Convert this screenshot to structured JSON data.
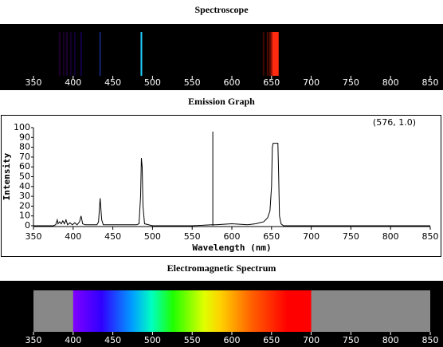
{
  "chart_data": [
    {
      "type": "spectroscope",
      "title": "Spectroscope",
      "xlim": [
        350,
        850
      ],
      "xticks": [
        350,
        400,
        450,
        500,
        550,
        600,
        650,
        700,
        750,
        800,
        850
      ],
      "lines": [
        383,
        388,
        392,
        397,
        402,
        410,
        434,
        486,
        640,
        645,
        648,
        650,
        652,
        653,
        654,
        655,
        656,
        657,
        658
      ],
      "values": [
        0.25,
        0.2,
        0.25,
        0.2,
        0.2,
        0.3,
        0.45,
        1,
        0.25,
        0.3,
        0.35,
        0.6,
        1,
        1,
        1,
        1,
        1,
        1,
        1
      ],
      "colors": [
        "#7a00c0",
        "#7a00c0",
        "#7000d0",
        "#6000e0",
        "#5000ff",
        "#4000ff",
        "#3050ff",
        "#20d0ff",
        "#ff2000",
        "#ff2000",
        "#ff2000",
        "#ff2000",
        "#ff2a10",
        "#ff2a10",
        "#ff2a10",
        "#ff2a10",
        "#ff2a10",
        "#ff2a10",
        "#ff2a10"
      ]
    },
    {
      "type": "line",
      "title": "Emission Graph",
      "xlabel": "Wavelength (nm)",
      "ylabel": "Intensity",
      "annotation": "(576, 1.0)",
      "cursor_x": 576,
      "color": "#000000",
      "xlim": [
        350,
        850
      ],
      "ylim": [
        0,
        100
      ],
      "xticks": [
        350,
        400,
        450,
        500,
        550,
        600,
        650,
        700,
        750,
        800,
        850
      ],
      "yticks": [
        0,
        10,
        20,
        30,
        40,
        50,
        60,
        70,
        80,
        90,
        100
      ],
      "x": [
        350,
        375,
        378,
        380,
        381,
        383,
        385,
        387,
        389,
        391,
        393,
        396,
        399,
        402,
        405,
        408,
        410,
        412,
        415,
        420,
        430,
        432,
        434,
        436,
        438,
        450,
        470,
        480,
        483,
        485,
        486,
        487,
        488,
        490,
        495,
        500,
        550,
        575,
        580,
        600,
        620,
        630,
        640,
        645,
        648,
        650,
        651,
        652,
        658,
        659,
        660,
        662,
        665,
        700,
        850
      ],
      "values": [
        0,
        0,
        1,
        6,
        2,
        4,
        2,
        5,
        2,
        6,
        1,
        3,
        1,
        3,
        1,
        4,
        10,
        2,
        1,
        1,
        1,
        4,
        28,
        6,
        1,
        1,
        1,
        1,
        2,
        30,
        69,
        60,
        20,
        2,
        1,
        0,
        0,
        1,
        1,
        2,
        1,
        2,
        4,
        8,
        15,
        40,
        80,
        84,
        84,
        50,
        10,
        2,
        0,
        0,
        0
      ]
    },
    {
      "type": "gradient",
      "title": "Electromagnetic Spectrum",
      "xlim": [
        350,
        850
      ],
      "xticks": [
        350,
        400,
        450,
        500,
        550,
        600,
        650,
        700,
        750,
        800,
        850
      ],
      "visible": [
        400,
        700
      ]
    }
  ]
}
